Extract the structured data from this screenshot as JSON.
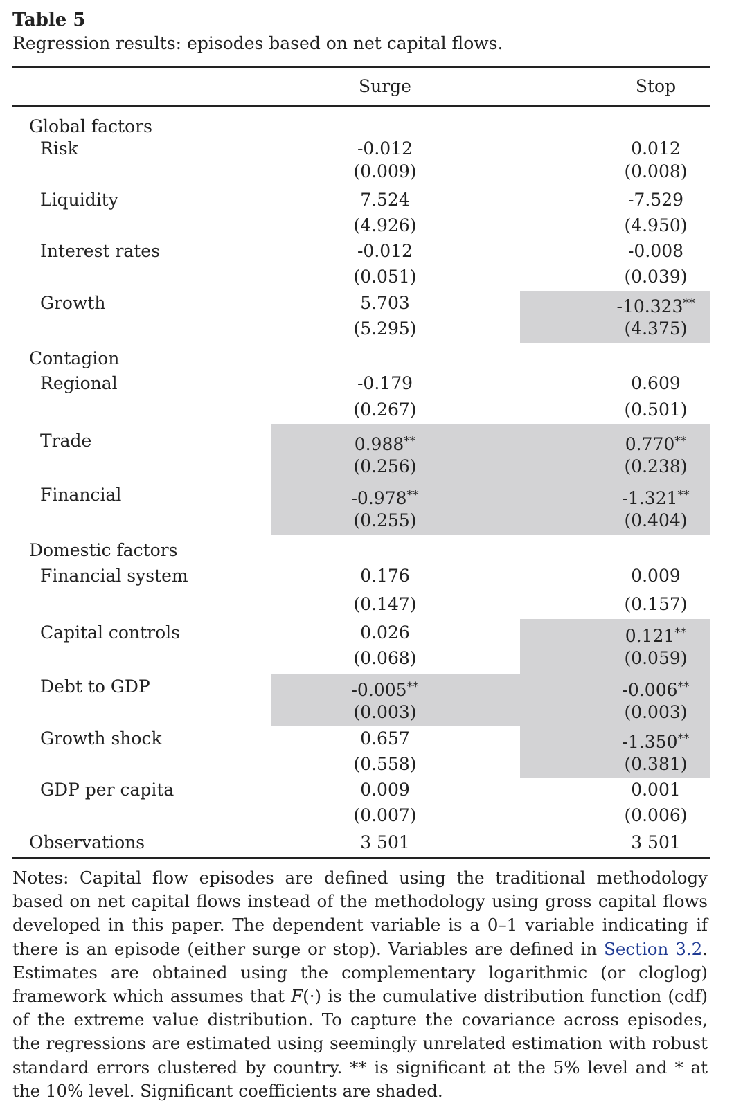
{
  "table": {
    "title": "Table 5",
    "caption": "Regression results: episodes based on net capital flows.",
    "headers": {
      "surge": "Surge",
      "stop": "Stop"
    },
    "sections": {
      "global": "Global factors",
      "contagion": "Contagion",
      "domestic": "Domestic factors"
    },
    "rows": [
      {
        "label": "Risk",
        "surge": "-0.012",
        "surge_se": "(0.009)",
        "surge_sig": "",
        "stop": "0.012",
        "stop_se": "(0.008)",
        "stop_sig": ""
      },
      {
        "label": "Liquidity",
        "surge": "7.524",
        "surge_se": "(4.926)",
        "surge_sig": "",
        "stop": "-7.529",
        "stop_se": "(4.950)",
        "stop_sig": ""
      },
      {
        "label": "Interest rates",
        "surge": "-0.012",
        "surge_se": "(0.051)",
        "surge_sig": "",
        "stop": "-0.008",
        "stop_se": "(0.039)",
        "stop_sig": ""
      },
      {
        "label": "Growth",
        "surge": "5.703",
        "surge_se": "(5.295)",
        "surge_sig": "",
        "stop": "-10.323",
        "stop_se": "(4.375)",
        "stop_sig": "**"
      },
      {
        "label": "Regional",
        "surge": "-0.179",
        "surge_se": "(0.267)",
        "surge_sig": "",
        "stop": "0.609",
        "stop_se": "(0.501)",
        "stop_sig": ""
      },
      {
        "label": "Trade",
        "surge": "0.988",
        "surge_se": "(0.256)",
        "surge_sig": "**",
        "stop": "0.770",
        "stop_se": "(0.238)",
        "stop_sig": "**"
      },
      {
        "label": "Financial",
        "surge": "-0.978",
        "surge_se": "(0.255)",
        "surge_sig": "**",
        "stop": "-1.321",
        "stop_se": "(0.404)",
        "stop_sig": "**"
      },
      {
        "label": "Financial system",
        "surge": "0.176",
        "surge_se": "(0.147)",
        "surge_sig": "",
        "stop": "0.009",
        "stop_se": "(0.157)",
        "stop_sig": ""
      },
      {
        "label": "Capital controls",
        "surge": "0.026",
        "surge_se": "(0.068)",
        "surge_sig": "",
        "stop": "0.121",
        "stop_se": "(0.059)",
        "stop_sig": "**"
      },
      {
        "label": "Debt to GDP",
        "surge": "-0.005",
        "surge_se": "(0.003)",
        "surge_sig": "**",
        "stop": "-0.006",
        "stop_se": "(0.003)",
        "stop_sig": "**"
      },
      {
        "label": "Growth shock",
        "surge": "0.657",
        "surge_se": "(0.558)",
        "surge_sig": "",
        "stop": "-1.350",
        "stop_se": "(0.381)",
        "stop_sig": "**"
      },
      {
        "label": "GDP per capita",
        "surge": "0.009",
        "surge_se": "(0.007)",
        "surge_sig": "",
        "stop": "0.001",
        "stop_se": "(0.006)",
        "stop_sig": ""
      }
    ],
    "observations": {
      "label": "Observations",
      "surge": "3 501",
      "stop": "3 501"
    },
    "shade_color": "#d3d3d5"
  },
  "notes": {
    "p1": "Notes: Capital flow episodes are defined using the traditional methodology based on net capital flows instead of the methodology using gross capital flows developed in this paper. The dependent variable is a 0–1 variable indicating if there is an episode (either surge or stop). Variables are defined in ",
    "link": "Section 3.2",
    "p2": ". Estimates are obtained using the complementary logarithmic (or cloglog) framework which assumes that ",
    "func": "F",
    "p3": "(·) is the cumulative distribution function (cdf) of the extreme value distribution. To capture the covariance across episodes, the regressions are estimated using seemingly unrelated estimation with robust standard errors clustered by country. ** is significant at the 5% level and * at the 10% level. Significant coefficients are shaded."
  }
}
